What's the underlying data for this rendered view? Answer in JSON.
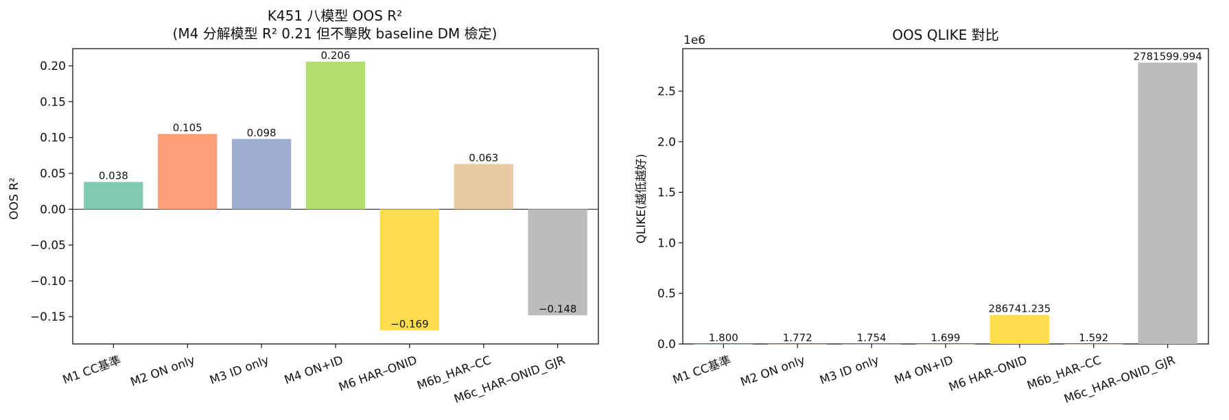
{
  "chart_data": [
    {
      "type": "bar",
      "title_line1": "K451 八模型 OOS R²",
      "title_line2": "(M4 分解模型 R² 0.21 但不擊敗 baseline DM 檢定)",
      "xlabel": "",
      "ylabel": "OOS R²",
      "ylim": [
        -0.188,
        0.224
      ],
      "yticks": [
        0.2,
        0.15,
        0.1,
        0.05,
        0.0,
        -0.05,
        -0.1,
        -0.15
      ],
      "ytick_labels": [
        "0.20",
        "0.15",
        "0.10",
        "0.05",
        "0.00",
        "−0.05",
        "−0.10",
        "−0.15"
      ],
      "zero_line": true,
      "categories": [
        "M1 CC基準",
        "M2 ON only",
        "M3 ID only",
        "M4 ON+ID",
        "M6 HAR–ONID",
        "M6b_HAR–CC",
        "M6c_HAR–ONID_GJR"
      ],
      "values": [
        0.038,
        0.105,
        0.098,
        0.206,
        -0.169,
        0.063,
        -0.148
      ],
      "value_labels": [
        "0.038",
        "0.105",
        "0.098",
        "0.206",
        "−0.169",
        "0.063",
        "−0.148"
      ],
      "colors": [
        "#7fcbb0",
        "#fc9f7b",
        "#9daed2",
        "#b3df6c",
        "#ffdd4c",
        "#e8cba0",
        "#bcbcbc"
      ]
    },
    {
      "type": "bar",
      "title": "OOS QLIKE 對比",
      "offset_text": "1e6",
      "xlabel": "",
      "ylabel": "QLIKE(越低越好)",
      "ylim": [
        0,
        2.92
      ],
      "yticks": [
        0.0,
        0.5,
        1.0,
        1.5,
        2.0,
        2.5
      ],
      "ytick_labels": [
        "0.0",
        "0.5",
        "1.0",
        "1.5",
        "2.0",
        "2.5"
      ],
      "categories": [
        "M1 CC基準",
        "M2 ON only",
        "M3 ID only",
        "M4 ON+ID",
        "M6 HAR–ONID",
        "M6b_HAR–CC",
        "M6c_HAR–ONID_GJR"
      ],
      "values": [
        1.8,
        1.772,
        1.754,
        1.699,
        286741.235,
        1.592,
        2781599.994
      ],
      "value_labels": [
        "1.800",
        "1.772",
        "1.754",
        "1.699",
        "286741.235",
        "1.592",
        "2781599.994"
      ],
      "colors": [
        "#7fcbb0",
        "#fc9f7b",
        "#9daed2",
        "#b3df6c",
        "#ffdd4c",
        "#e8cba0",
        "#bcbcbc"
      ]
    }
  ]
}
